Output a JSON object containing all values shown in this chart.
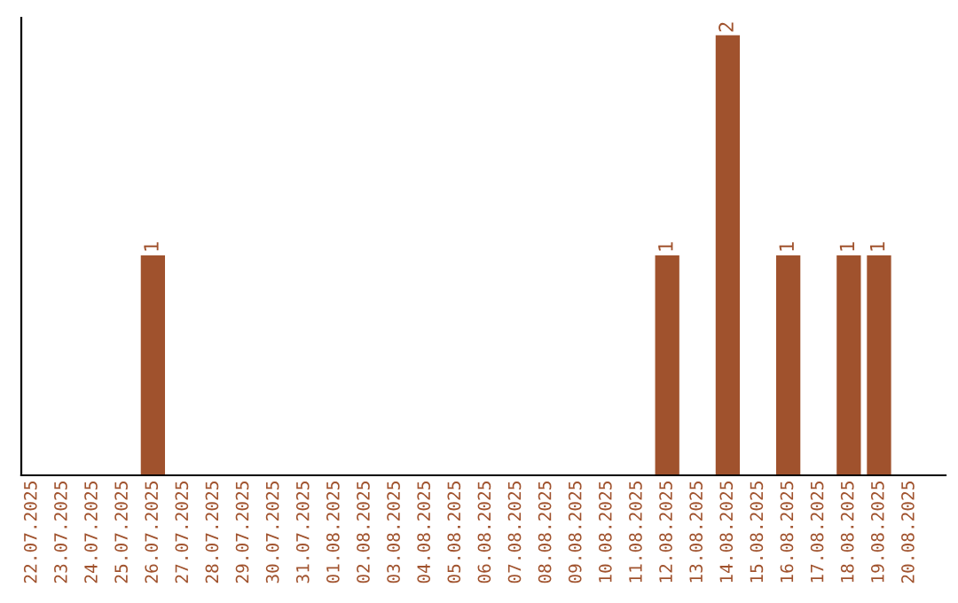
{
  "chart_data": {
    "type": "bar",
    "categories": [
      "22.07.2025",
      "23.07.2025",
      "24.07.2025",
      "25.07.2025",
      "26.07.2025",
      "27.07.2025",
      "28.07.2025",
      "29.07.2025",
      "30.07.2025",
      "31.07.2025",
      "01.08.2025",
      "02.08.2025",
      "03.08.2025",
      "04.08.2025",
      "05.08.2025",
      "06.08.2025",
      "07.08.2025",
      "08.08.2025",
      "09.08.2025",
      "10.08.2025",
      "11.08.2025",
      "12.08.2025",
      "13.08.2025",
      "14.08.2025",
      "15.08.2025",
      "16.08.2025",
      "17.08.2025",
      "18.08.2025",
      "19.08.2025",
      "20.08.2025"
    ],
    "values": [
      0,
      0,
      0,
      0,
      1,
      0,
      0,
      0,
      0,
      0,
      0,
      0,
      0,
      0,
      0,
      0,
      0,
      0,
      0,
      0,
      0,
      1,
      0,
      2,
      0,
      1,
      0,
      1,
      1,
      0
    ],
    "value_labels": [
      null,
      null,
      null,
      null,
      "1",
      null,
      null,
      null,
      null,
      null,
      null,
      null,
      null,
      null,
      null,
      null,
      null,
      null,
      null,
      null,
      null,
      "1",
      null,
      "2",
      null,
      "1",
      null,
      "1",
      "1",
      null
    ],
    "color": "#a0522d",
    "ylim": [
      0,
      2.08
    ],
    "tick_labels": "x",
    "grid": false,
    "legend": false
  }
}
